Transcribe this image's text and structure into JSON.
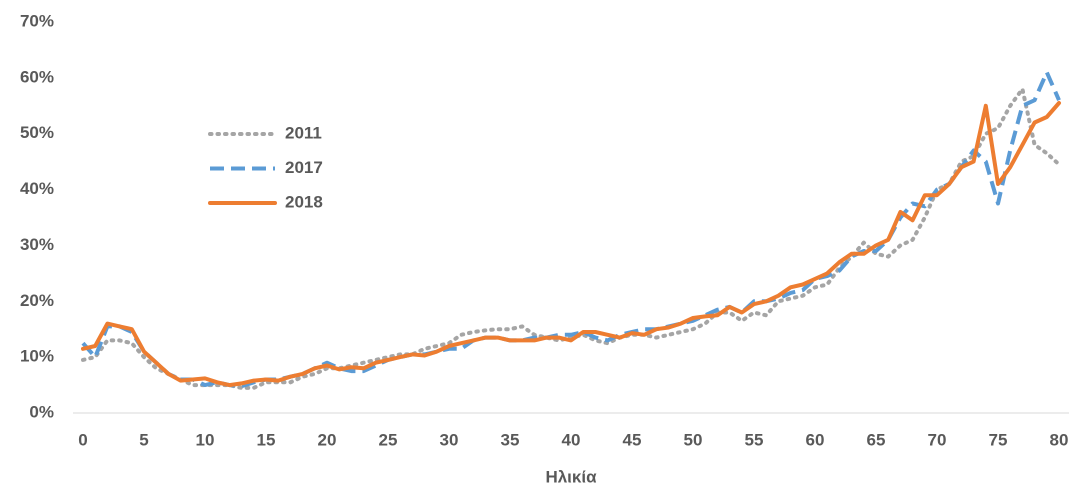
{
  "chart_data": {
    "type": "line",
    "x_label": "Ηλικία",
    "x": [
      0,
      1,
      2,
      3,
      4,
      5,
      6,
      7,
      8,
      9,
      10,
      11,
      12,
      13,
      14,
      15,
      16,
      17,
      18,
      19,
      20,
      21,
      22,
      23,
      24,
      25,
      26,
      27,
      28,
      29,
      30,
      31,
      32,
      33,
      34,
      35,
      36,
      37,
      38,
      39,
      40,
      41,
      42,
      43,
      44,
      45,
      46,
      47,
      48,
      49,
      50,
      51,
      52,
      53,
      54,
      55,
      56,
      57,
      58,
      59,
      60,
      61,
      62,
      63,
      64,
      65,
      66,
      67,
      68,
      69,
      70,
      71,
      72,
      73,
      74,
      75,
      76,
      77,
      78,
      79,
      80
    ],
    "series": [
      {
        "name": "2011",
        "color": "#a5a5a5",
        "dash": "dotted",
        "values": [
          9.5,
          10,
          13,
          13,
          12.5,
          10,
          8,
          7,
          6,
          5,
          5,
          5,
          5,
          4.5,
          4.5,
          5.5,
          5.5,
          5.5,
          6.5,
          7,
          8,
          8,
          8.5,
          9,
          9.5,
          10,
          10.5,
          10.5,
          11.5,
          12,
          12.5,
          14,
          14.5,
          14.8,
          15,
          15,
          15.5,
          14,
          13.5,
          13,
          13.5,
          14,
          13,
          12.5,
          13.5,
          14,
          14,
          13.5,
          14,
          14.5,
          15,
          16,
          18,
          18,
          16.5,
          18,
          17.5,
          20,
          20.5,
          21,
          22.5,
          23,
          26,
          28,
          30.5,
          28.5,
          28,
          30,
          31,
          35,
          40,
          41,
          45,
          46,
          50,
          51,
          55,
          58,
          48,
          46.5,
          44.5
        ]
      },
      {
        "name": "2017",
        "color": "#5b9bd5",
        "dash": "dashed",
        "values": [
          12.5,
          10,
          15.5,
          15.5,
          14.5,
          11,
          9,
          7,
          6,
          6,
          5,
          5.5,
          5,
          4.8,
          5.5,
          6,
          6,
          6.5,
          7,
          8,
          9,
          8,
          7.5,
          7.5,
          8.5,
          9.5,
          10,
          10.5,
          10.5,
          11,
          11.5,
          11.5,
          13,
          13.5,
          13.5,
          13,
          13,
          13.5,
          13.5,
          14,
          14,
          14.5,
          13.5,
          13,
          14,
          14.5,
          15,
          15,
          15.5,
          16,
          16.5,
          17.5,
          18.5,
          19,
          18,
          20,
          20,
          20.5,
          21.5,
          22,
          24,
          24.5,
          25.5,
          28,
          29,
          29,
          31,
          35,
          37.5,
          37,
          40,
          41,
          44,
          47,
          45,
          37.5,
          47,
          55,
          56,
          61,
          56
        ]
      },
      {
        "name": "2018",
        "color": "#ed7d31",
        "dash": "solid",
        "values": [
          11.5,
          12,
          16,
          15.5,
          15,
          11,
          9,
          7,
          5.8,
          6,
          6.2,
          5.5,
          5,
          5.3,
          5.8,
          6,
          5.8,
          6.5,
          7,
          8,
          8.5,
          7.8,
          8.2,
          8,
          9,
          9.5,
          10,
          10.5,
          10.3,
          11,
          12,
          12.5,
          13,
          13.5,
          13.5,
          13,
          13,
          13,
          13.5,
          13.5,
          13,
          14.5,
          14.5,
          14,
          13.5,
          14.3,
          14,
          15,
          15.3,
          16,
          17,
          17.3,
          17.5,
          19,
          18,
          19.5,
          20,
          21,
          22.5,
          23,
          24,
          25,
          27,
          28.5,
          28.5,
          30,
          31,
          36,
          34.5,
          39,
          39,
          41,
          44,
          45,
          55,
          41,
          44,
          48,
          52,
          53,
          55.5
        ]
      }
    ],
    "xlim": [
      0,
      80
    ],
    "xticks": [
      0,
      5,
      10,
      15,
      20,
      25,
      30,
      35,
      40,
      45,
      50,
      55,
      60,
      65,
      70,
      75,
      80
    ],
    "ylim": [
      0,
      70
    ],
    "yticks": [
      {
        "value": 0,
        "label": "0%"
      },
      {
        "value": 10,
        "label": "10%"
      },
      {
        "value": 20,
        "label": "20%"
      },
      {
        "value": 30,
        "label": "30%"
      },
      {
        "value": 40,
        "label": "40%"
      },
      {
        "value": 50,
        "label": "50%"
      },
      {
        "value": 60,
        "label": "60%"
      },
      {
        "value": 70,
        "label": "70%"
      }
    ],
    "grid": false,
    "legend": "left"
  }
}
